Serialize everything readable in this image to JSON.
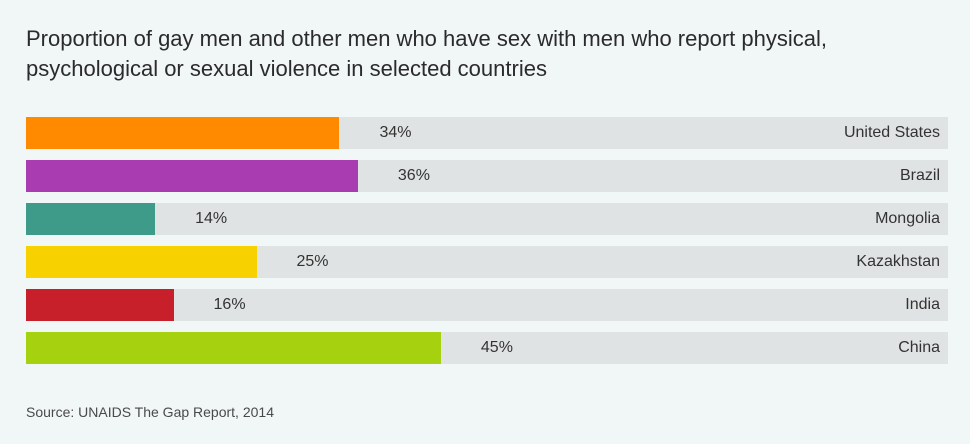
{
  "source": "Source: UNAIDS The Gap Report, 2014",
  "chart_data": {
    "type": "bar",
    "orientation": "horizontal",
    "title": "Proportion of gay men and other men who have sex with men who report physical, psychological or sexual violence in selected countries",
    "xlabel": "",
    "ylabel": "",
    "xlim": [
      0,
      100
    ],
    "grid": false,
    "categories": [
      "United States",
      "Brazil",
      "Mongolia",
      "Kazakhstan",
      "India",
      "China"
    ],
    "values": [
      34,
      36,
      14,
      25,
      16,
      45
    ],
    "value_labels": [
      "34%",
      "36%",
      "14%",
      "25%",
      "16%",
      "45%"
    ],
    "colors": [
      "#ff8a00",
      "#a93cb0",
      "#3e9b8a",
      "#f8d200",
      "#c8202a",
      "#a6d10f"
    ],
    "track_color": "#e0e3e3"
  }
}
